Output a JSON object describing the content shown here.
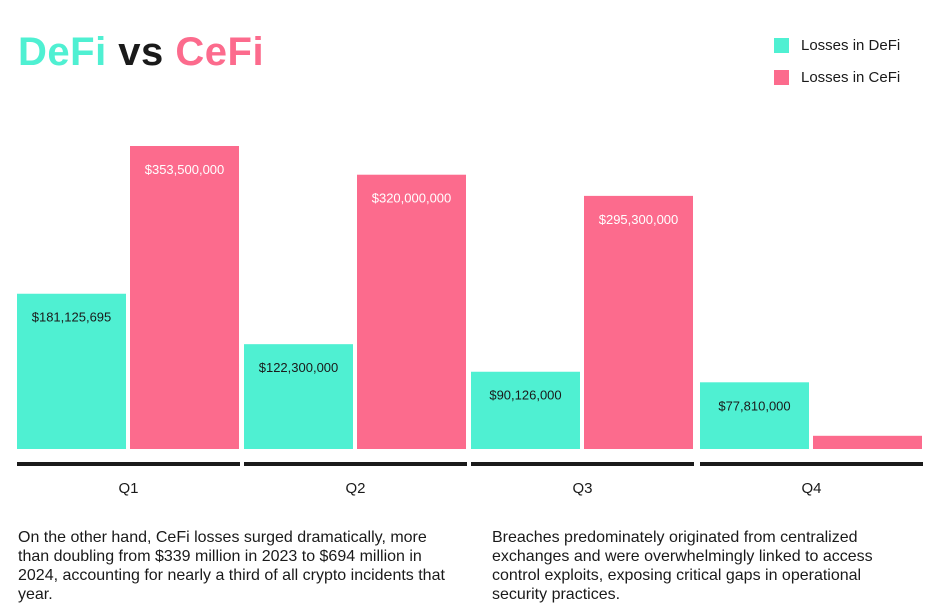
{
  "title": {
    "word1": "DeFi",
    "word2": " vs ",
    "word3": "CeFi"
  },
  "colors": {
    "defi": "#4ff0d2",
    "cefi": "#fc6b8d",
    "axis": "#1a1a1a",
    "dark_label": "#1a1a1a",
    "light_label": "#ffffff"
  },
  "legend": [
    {
      "label": "Losses in DeFi",
      "color": "#4ff0d2"
    },
    {
      "label": "Losses in CeFi",
      "color": "#fc6b8d"
    }
  ],
  "chart_data": {
    "type": "bar",
    "title": "DeFi vs CeFi",
    "xlabel": "",
    "ylabel": "",
    "grid": false,
    "legend_position": "top-right",
    "categories": [
      "Q1",
      "Q2",
      "Q3",
      "Q4"
    ],
    "ylim": [
      0,
      353500000
    ],
    "series": [
      {
        "name": "Losses in DeFi",
        "color": "#4ff0d2",
        "values": [
          181125695,
          122300000,
          90126000,
          77810000
        ],
        "labels": [
          "$181,125,695",
          "$122,300,000",
          "$90,126,000",
          "$77,810,000"
        ]
      },
      {
        "name": "Losses in CeFi",
        "color": "#fc6b8d",
        "values": [
          353500000,
          320000000,
          295300000,
          15400000
        ],
        "labels": [
          "$353,500,000",
          "$320,000,000",
          "$295,300,000",
          "$15,400,000"
        ]
      }
    ]
  },
  "captions": {
    "left": "On the other hand, CeFi losses surged dramatically, more than doubling from $339 million in 2023 to $694 million in 2024, accounting for nearly a third of all crypto incidents that year.",
    "right": "Breaches predominately originated from centralized exchanges and were overwhelmingly linked to access control exploits, exposing critical gaps in operational security practices."
  }
}
